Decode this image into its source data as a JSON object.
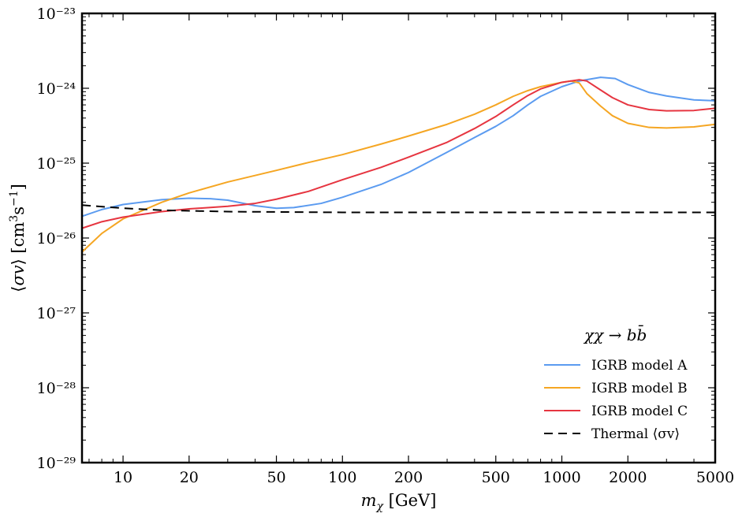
{
  "chart_data": {
    "type": "line",
    "title": "",
    "xlabel": "m_χ [GeV]",
    "ylabel": "⟨σv⟩ [cm³s⁻¹]",
    "xscale": "log",
    "yscale": "log",
    "xlim": [
      6.5,
      5000
    ],
    "ylim": [
      1e-29,
      1e-23
    ],
    "x_ticks": [
      10,
      20,
      50,
      100,
      200,
      500,
      1000,
      2000,
      5000
    ],
    "x_tick_labels": [
      "10",
      "20",
      "50",
      "100",
      "200",
      "500",
      "1000",
      "2000",
      "5000"
    ],
    "y_ticks": [
      1e-29,
      1e-28,
      1e-27,
      1e-26,
      1e-25,
      1e-24,
      1e-23
    ],
    "y_tick_labels": [
      "10⁻²⁹",
      "10⁻²⁸",
      "10⁻²⁷",
      "10⁻²⁶",
      "10⁻²⁵",
      "10⁻²⁴",
      "10⁻²³"
    ],
    "legend_title": "χχ → bb̄",
    "legend_position": "lower-right",
    "series": [
      {
        "name": "IGRB model A",
        "color": "#5b9bf0",
        "dash": "solid",
        "points": [
          [
            6.5,
            1.95e-26
          ],
          [
            8,
            2.4e-26
          ],
          [
            10,
            2.8e-26
          ],
          [
            15,
            3.25e-26
          ],
          [
            20,
            3.4e-26
          ],
          [
            25,
            3.35e-26
          ],
          [
            30,
            3.2e-26
          ],
          [
            40,
            2.7e-26
          ],
          [
            50,
            2.5e-26
          ],
          [
            60,
            2.55e-26
          ],
          [
            80,
            2.9e-26
          ],
          [
            100,
            3.5e-26
          ],
          [
            150,
            5.2e-26
          ],
          [
            200,
            7.5e-26
          ],
          [
            300,
            1.4e-25
          ],
          [
            400,
            2.2e-25
          ],
          [
            500,
            3.1e-25
          ],
          [
            600,
            4.3e-25
          ],
          [
            700,
            6e-25
          ],
          [
            800,
            7.8e-25
          ],
          [
            1000,
            1.05e-24
          ],
          [
            1200,
            1.25e-24
          ],
          [
            1500,
            1.4e-24
          ],
          [
            1750,
            1.35e-24
          ],
          [
            2000,
            1.12e-24
          ],
          [
            2500,
            8.8e-25
          ],
          [
            3000,
            7.9e-25
          ],
          [
            4000,
            7e-25
          ],
          [
            5000,
            6.8e-25
          ]
        ]
      },
      {
        "name": "IGRB model B",
        "color": "#f5a623",
        "dash": "solid",
        "points": [
          [
            6.5,
            6.5e-27
          ],
          [
            8,
            1.15e-26
          ],
          [
            10,
            1.8e-26
          ],
          [
            15,
            3e-26
          ],
          [
            20,
            4e-26
          ],
          [
            30,
            5.6e-26
          ],
          [
            50,
            8e-26
          ],
          [
            70,
            1.02e-25
          ],
          [
            100,
            1.3e-25
          ],
          [
            150,
            1.8e-25
          ],
          [
            200,
            2.3e-25
          ],
          [
            300,
            3.3e-25
          ],
          [
            400,
            4.5e-25
          ],
          [
            500,
            6e-25
          ],
          [
            600,
            7.8e-25
          ],
          [
            700,
            9.3e-25
          ],
          [
            800,
            1.05e-24
          ],
          [
            1000,
            1.2e-24
          ],
          [
            1100,
            1.25e-24
          ],
          [
            1200,
            1.18e-24
          ],
          [
            1300,
            8.5e-25
          ],
          [
            1500,
            5.8e-25
          ],
          [
            1700,
            4.3e-25
          ],
          [
            2000,
            3.4e-25
          ],
          [
            2500,
            3e-25
          ],
          [
            3000,
            2.95e-25
          ],
          [
            4000,
            3.05e-25
          ],
          [
            5000,
            3.3e-25
          ]
        ]
      },
      {
        "name": "IGRB model C",
        "color": "#e63540",
        "dash": "solid",
        "points": [
          [
            6.5,
            1.35e-26
          ],
          [
            8,
            1.65e-26
          ],
          [
            10,
            1.9e-26
          ],
          [
            15,
            2.25e-26
          ],
          [
            20,
            2.45e-26
          ],
          [
            30,
            2.65e-26
          ],
          [
            40,
            2.9e-26
          ],
          [
            50,
            3.3e-26
          ],
          [
            70,
            4.2e-26
          ],
          [
            100,
            6e-26
          ],
          [
            150,
            8.8e-26
          ],
          [
            200,
            1.2e-25
          ],
          [
            300,
            1.9e-25
          ],
          [
            400,
            2.9e-25
          ],
          [
            500,
            4.2e-25
          ],
          [
            600,
            6e-25
          ],
          [
            700,
            8e-25
          ],
          [
            800,
            9.8e-25
          ],
          [
            1000,
            1.2e-24
          ],
          [
            1200,
            1.3e-24
          ],
          [
            1300,
            1.25e-24
          ],
          [
            1500,
            9.5e-25
          ],
          [
            1700,
            7.5e-25
          ],
          [
            2000,
            6e-25
          ],
          [
            2500,
            5.2e-25
          ],
          [
            3000,
            5e-25
          ],
          [
            4000,
            5.05e-25
          ],
          [
            5000,
            5.4e-25
          ]
        ]
      },
      {
        "name": "Thermal ⟨σv⟩",
        "color": "#000000",
        "dash": "dashed",
        "points": [
          [
            6.5,
            2.75e-26
          ],
          [
            10,
            2.5e-26
          ],
          [
            15,
            2.35e-26
          ],
          [
            30,
            2.25e-26
          ],
          [
            100,
            2.2e-26
          ],
          [
            1000,
            2.2e-26
          ],
          [
            5000,
            2.2e-26
          ]
        ]
      }
    ]
  }
}
